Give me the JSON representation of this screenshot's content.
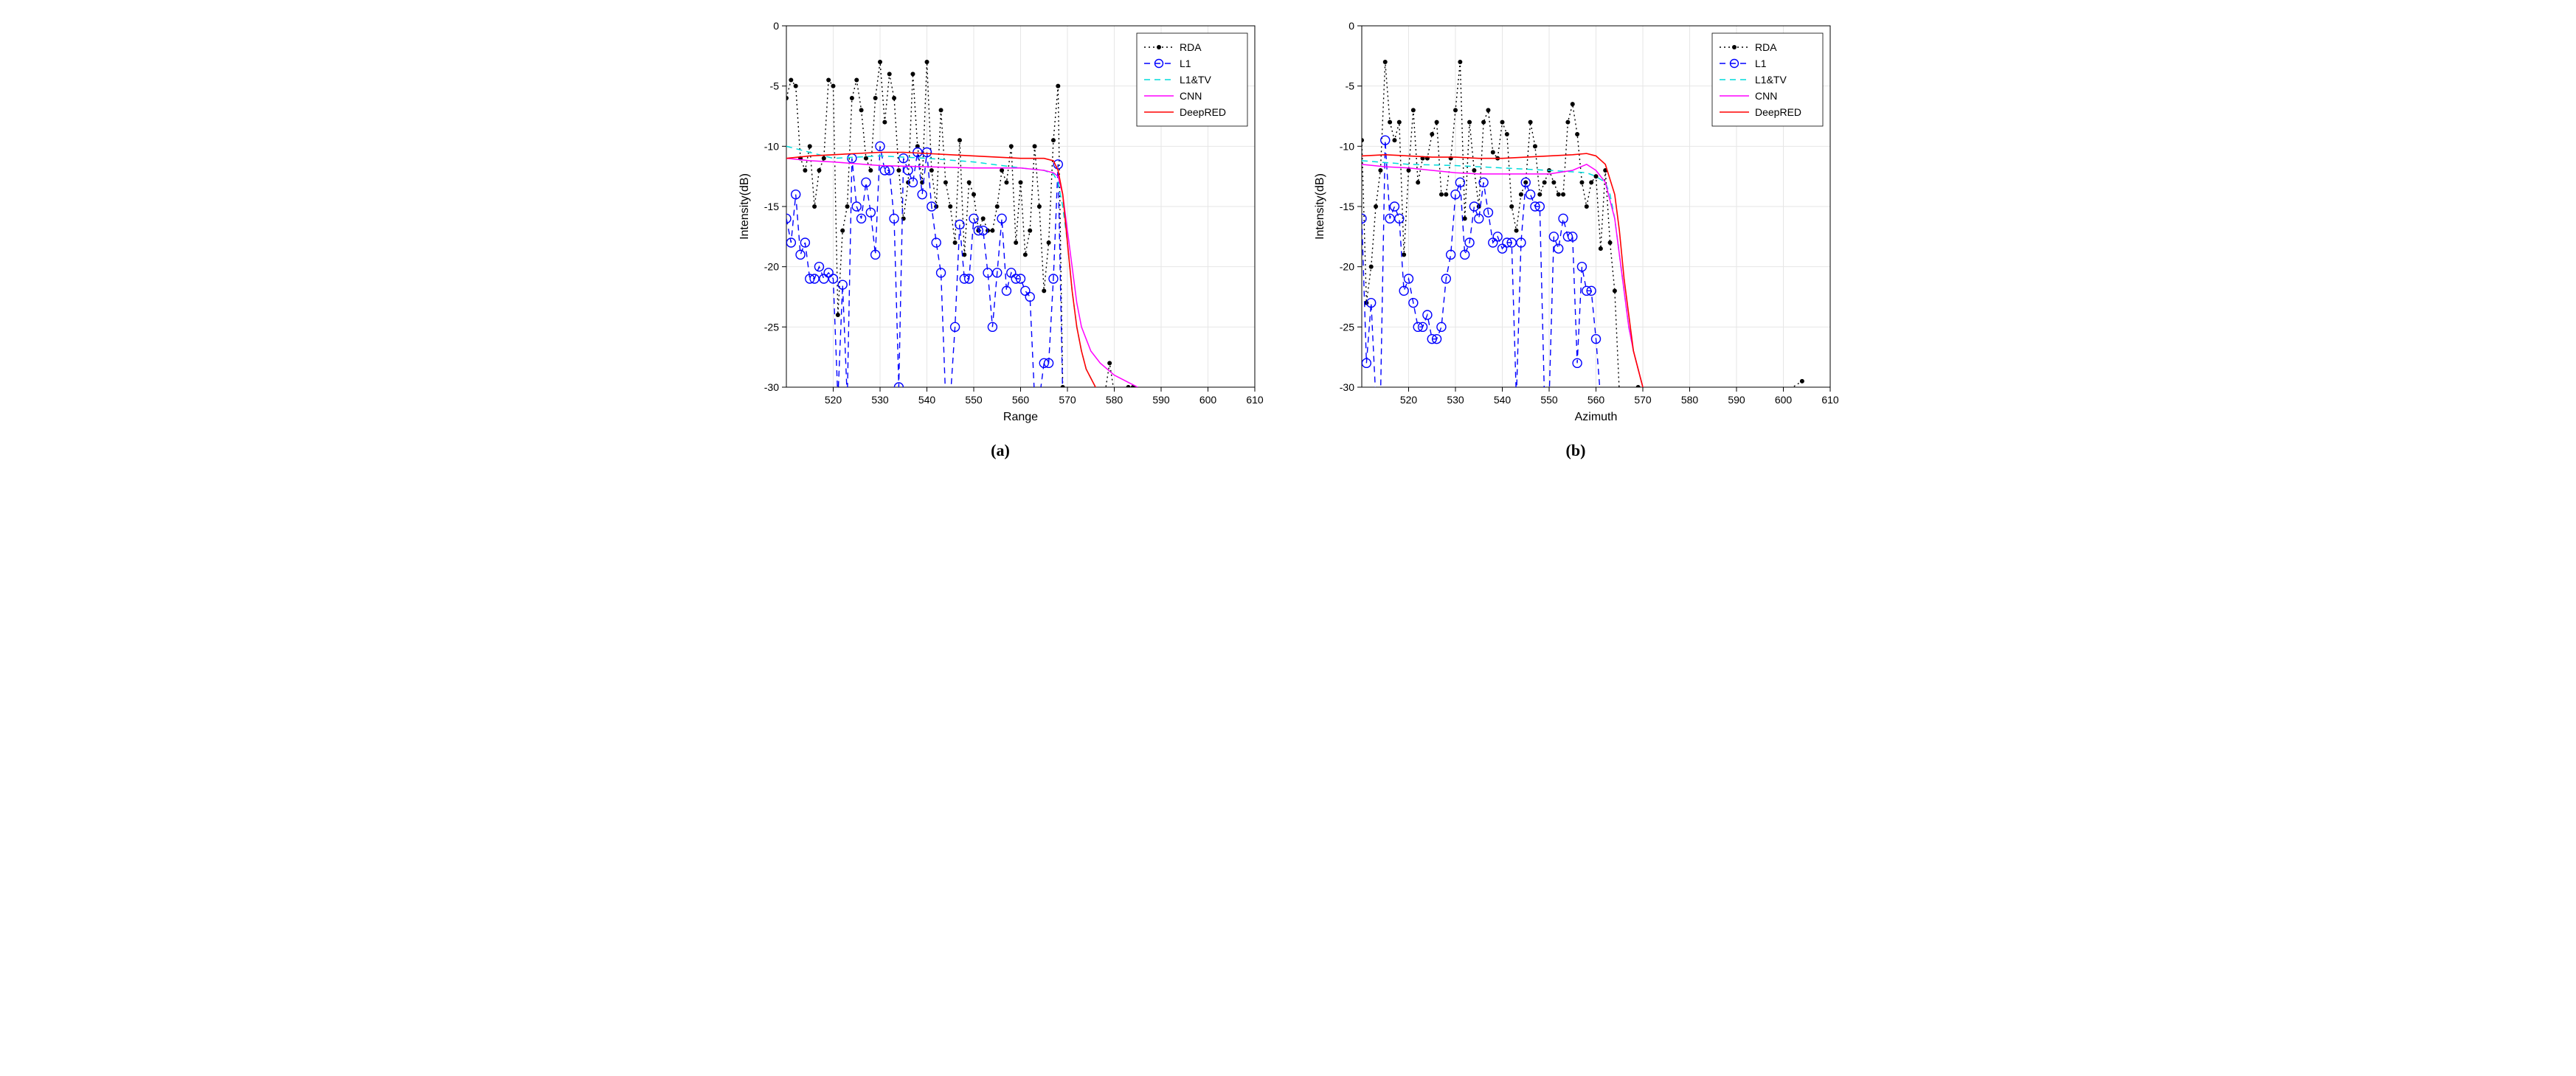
{
  "figure": {
    "background_color": "#ffffff",
    "grid_color": "#e6e6e6",
    "axis_color": "#000000",
    "tick_fontsize": 14,
    "label_fontsize": 16,
    "legend_fontsize": 14,
    "caption_fontsize": 22,
    "xlim": [
      510,
      610
    ],
    "ylim": [
      -30,
      0
    ],
    "xticks": [
      520,
      530,
      540,
      550,
      560,
      570,
      580,
      590,
      600,
      610
    ],
    "yticks": [
      -30,
      -25,
      -20,
      -15,
      -10,
      -5,
      0
    ],
    "ylabel": "Intensity(dB)",
    "legend": [
      {
        "label": "RDA",
        "color": "#000000",
        "style": "dotted-marker",
        "marker": "dot"
      },
      {
        "label": "L1",
        "color": "#0000ff",
        "style": "dashed-marker",
        "marker": "circle"
      },
      {
        "label": "L1&TV",
        "color": "#00dcdc",
        "style": "dashed"
      },
      {
        "label": "CNN",
        "color": "#ff00ff",
        "style": "solid"
      },
      {
        "label": "DeepRED",
        "color": "#ff0000",
        "style": "solid"
      }
    ],
    "subplots": [
      {
        "id": "a",
        "caption": "(a)",
        "xlabel": "Range",
        "series": {
          "RDA": {
            "color": "#000000",
            "style": "dotted-marker",
            "marker_size": 3,
            "x": [
              510,
              511,
              512,
              513,
              514,
              515,
              516,
              517,
              518,
              519,
              520,
              521,
              522,
              523,
              524,
              525,
              526,
              527,
              528,
              529,
              530,
              531,
              532,
              533,
              534,
              535,
              536,
              537,
              538,
              539,
              540,
              541,
              542,
              543,
              544,
              545,
              546,
              547,
              548,
              549,
              550,
              551,
              552,
              553,
              554,
              555,
              556,
              557,
              558,
              559,
              560,
              561,
              562,
              563,
              564,
              565,
              566,
              567,
              568,
              569,
              570,
              571,
              572,
              573,
              574,
              575,
              576,
              577,
              578,
              579,
              580,
              581,
              582,
              583,
              584,
              585
            ],
            "y": [
              -6,
              -4.5,
              -5,
              -11,
              -12,
              -10,
              -15,
              -12,
              -11,
              -4.5,
              -5,
              -24,
              -17,
              -15,
              -6,
              -4.5,
              -7,
              -11,
              -12,
              -6,
              -3,
              -8,
              -4,
              -6,
              -12,
              -16,
              -13,
              -4,
              -10,
              -13,
              -3,
              -12,
              -15,
              -7,
              -13,
              -15,
              -18,
              -9.5,
              -19,
              -13,
              -14,
              -17,
              -16,
              -17,
              -17,
              -15,
              -12,
              -13,
              -10,
              -18,
              -13,
              -19,
              -17,
              -10,
              -15,
              -22,
              -18,
              -9.5,
              -5,
              -30,
              -30.5,
              -30.5,
              -30.5,
              -30.5,
              -30.5,
              -30.5,
              -30.5,
              -30.5,
              -30.5,
              -28,
              -30.5,
              -30.5,
              -30.5,
              -30,
              -30,
              -30.5
            ]
          },
          "L1": {
            "color": "#0000ff",
            "style": "dashed-marker",
            "marker_size": 6,
            "x": [
              510,
              511,
              512,
              513,
              514,
              515,
              516,
              517,
              518,
              519,
              520,
              521,
              522,
              523,
              524,
              525,
              526,
              527,
              528,
              529,
              530,
              531,
              532,
              533,
              534,
              535,
              536,
              537,
              538,
              539,
              540,
              541,
              542,
              543,
              544,
              545,
              546,
              547,
              548,
              549,
              550,
              551,
              552,
              553,
              554,
              555,
              556,
              557,
              558,
              559,
              560,
              561,
              562,
              563,
              564,
              565,
              566,
              567,
              568,
              569,
              570,
              571,
              572,
              573,
              574,
              575
            ],
            "y": [
              -16,
              -18,
              -14,
              -19,
              -18,
              -21,
              -21,
              -20,
              -21,
              -20.5,
              -21,
              -31,
              -21.5,
              -31,
              -11,
              -15,
              -16,
              -13,
              -15.5,
              -19,
              -10,
              -12,
              -12,
              -16,
              -30,
              -11,
              -12,
              -13,
              -10.5,
              -14,
              -10.5,
              -15,
              -18,
              -20.5,
              -31,
              -31,
              -25,
              -16.5,
              -21,
              -21,
              -16,
              -17,
              -17,
              -20.5,
              -25,
              -20.5,
              -16,
              -22,
              -20.5,
              -21,
              -21,
              -22,
              -22.5,
              -31,
              -31,
              -28,
              -28,
              -21,
              -11.5,
              -31,
              -31,
              -31,
              -31,
              -31,
              -31,
              -31
            ]
          },
          "L1TV": {
            "color": "#00dcdc",
            "style": "dashed",
            "line_width": 1.5,
            "x": [
              510,
              520,
              530,
              540,
              550,
              560,
              565,
              567,
              568,
              569,
              570,
              571,
              572,
              573,
              574,
              576,
              578,
              580
            ],
            "y": [
              -10,
              -11,
              -10.8,
              -11,
              -11.3,
              -11.8,
              -12,
              -12.3,
              -13,
              -15,
              -18,
              -22,
              -25,
              -27,
              -28.5,
              -30,
              -31,
              -31.5
            ]
          },
          "CNN": {
            "color": "#ff00ff",
            "style": "solid",
            "line_width": 1.5,
            "x": [
              510,
              515,
              520,
              530,
              540,
              550,
              560,
              565,
              567,
              568,
              569,
              570,
              571,
              572,
              573,
              574,
              575,
              577,
              580,
              585
            ],
            "y": [
              -11,
              -11.2,
              -11.3,
              -11.6,
              -11.7,
              -11.8,
              -11.8,
              -12,
              -12.2,
              -12.5,
              -14,
              -17,
              -20,
              -23,
              -25,
              -26,
              -27,
              -28,
              -29,
              -30
            ]
          },
          "DeepRED": {
            "color": "#ff0000",
            "style": "solid",
            "line_width": 1.6,
            "x": [
              510,
              515,
              520,
              525,
              530,
              535,
              540,
              545,
              550,
              555,
              560,
              563,
              565,
              567,
              568,
              569,
              570,
              571,
              572,
              573,
              574,
              576,
              580
            ],
            "y": [
              -11,
              -10.8,
              -10.7,
              -10.6,
              -10.5,
              -10.5,
              -10.6,
              -10.7,
              -10.8,
              -10.9,
              -11,
              -11,
              -11,
              -11.2,
              -12,
              -14,
              -18,
              -22,
              -25,
              -27,
              -28.5,
              -30,
              -31
            ]
          }
        }
      },
      {
        "id": "b",
        "caption": "(b)",
        "xlabel": "Azimuth",
        "series": {
          "RDA": {
            "color": "#000000",
            "style": "dotted-marker",
            "marker_size": 3,
            "x": [
              510,
              511,
              512,
              513,
              514,
              515,
              516,
              517,
              518,
              519,
              520,
              521,
              522,
              523,
              524,
              525,
              526,
              527,
              528,
              529,
              530,
              531,
              532,
              533,
              534,
              535,
              536,
              537,
              538,
              539,
              540,
              541,
              542,
              543,
              544,
              545,
              546,
              547,
              548,
              549,
              550,
              551,
              552,
              553,
              554,
              555,
              556,
              557,
              558,
              559,
              560,
              561,
              562,
              563,
              564,
              565,
              566,
              567,
              568,
              569,
              570,
              571,
              575,
              580,
              585,
              590,
              595,
              600,
              604
            ],
            "y": [
              -9.5,
              -23,
              -20,
              -15,
              -12,
              -3,
              -8,
              -9.5,
              -8,
              -19,
              -12,
              -7,
              -13,
              -11,
              -11,
              -9,
              -8,
              -14,
              -14,
              -11,
              -7,
              -3,
              -16,
              -8,
              -12,
              -15,
              -8,
              -7,
              -10.5,
              -11,
              -8,
              -9,
              -15,
              -17,
              -14,
              -13,
              -8,
              -10,
              -14,
              -13,
              -12,
              -13,
              -14,
              -14,
              -8,
              -6.5,
              -9,
              -13,
              -15,
              -13,
              -12.5,
              -18.5,
              -12,
              -18,
              -22,
              -30.5,
              -30.5,
              -30.5,
              -30.5,
              -30,
              -30.5,
              -30.5,
              -30.5,
              -30.5,
              -30.5,
              -30.5,
              -30.5,
              -30.5,
              -29.5
            ]
          },
          "L1": {
            "color": "#0000ff",
            "style": "dashed-marker",
            "marker_size": 6,
            "x": [
              510,
              511,
              512,
              513,
              514,
              515,
              516,
              517,
              518,
              519,
              520,
              521,
              522,
              523,
              524,
              525,
              526,
              527,
              528,
              529,
              530,
              531,
              532,
              533,
              534,
              535,
              536,
              537,
              538,
              539,
              540,
              541,
              542,
              543,
              544,
              545,
              546,
              547,
              548,
              549,
              550,
              551,
              552,
              553,
              554,
              555,
              556,
              557,
              558,
              559,
              560,
              561,
              562,
              563,
              564,
              565,
              566,
              567
            ],
            "y": [
              -16,
              -28,
              -23,
              -31,
              -31,
              -9.5,
              -16,
              -15,
              -16,
              -22,
              -21,
              -23,
              -25,
              -25,
              -24,
              -26,
              -26,
              -25,
              -21,
              -19,
              -14,
              -13,
              -19,
              -18,
              -15,
              -16,
              -13,
              -15.5,
              -18,
              -17.5,
              -18.5,
              -18,
              -18,
              -31,
              -18,
              -13,
              -14,
              -15,
              -15,
              -31,
              -31,
              -17.5,
              -18.5,
              -16,
              -17.5,
              -17.5,
              -28,
              -20,
              -22,
              -22,
              -26,
              -31,
              -31,
              -31,
              -31,
              -31,
              -31,
              -31
            ]
          },
          "L1TV": {
            "color": "#00dcdc",
            "style": "dashed",
            "line_width": 1.5,
            "x": [
              510,
              520,
              530,
              540,
              550,
              558,
              560,
              562,
              563,
              564,
              565,
              566,
              567,
              568,
              570,
              575
            ],
            "y": [
              -11.2,
              -11.5,
              -11.6,
              -11.8,
              -12,
              -12.2,
              -12.5,
              -13,
              -14,
              -16,
              -19,
              -22,
              -25,
              -27,
              -30,
              -31.5
            ]
          },
          "CNN": {
            "color": "#ff00ff",
            "style": "solid",
            "line_width": 1.5,
            "x": [
              510,
              515,
              520,
              525,
              530,
              535,
              540,
              545,
              550,
              555,
              558,
              560,
              562,
              564,
              565,
              566,
              567,
              568,
              570,
              575
            ],
            "y": [
              -11.5,
              -11.7,
              -11.8,
              -12,
              -12.2,
              -12.3,
              -12.3,
              -12.3,
              -12.3,
              -12,
              -11.5,
              -12,
              -13,
              -16,
              -19,
              -22,
              -25,
              -27,
              -30,
              -31.5
            ]
          },
          "DeepRED": {
            "color": "#ff0000",
            "style": "solid",
            "line_width": 1.6,
            "x": [
              510,
              515,
              520,
              525,
              530,
              535,
              540,
              545,
              550,
              555,
              558,
              560,
              562,
              564,
              565,
              566,
              567,
              568,
              570,
              575
            ],
            "y": [
              -10.8,
              -10.7,
              -10.8,
              -10.9,
              -10.9,
              -11,
              -11,
              -10.9,
              -10.8,
              -10.7,
              -10.6,
              -10.8,
              -11.5,
              -14,
              -17,
              -21,
              -24,
              -27,
              -30,
              -31.5
            ]
          }
        }
      }
    ]
  }
}
